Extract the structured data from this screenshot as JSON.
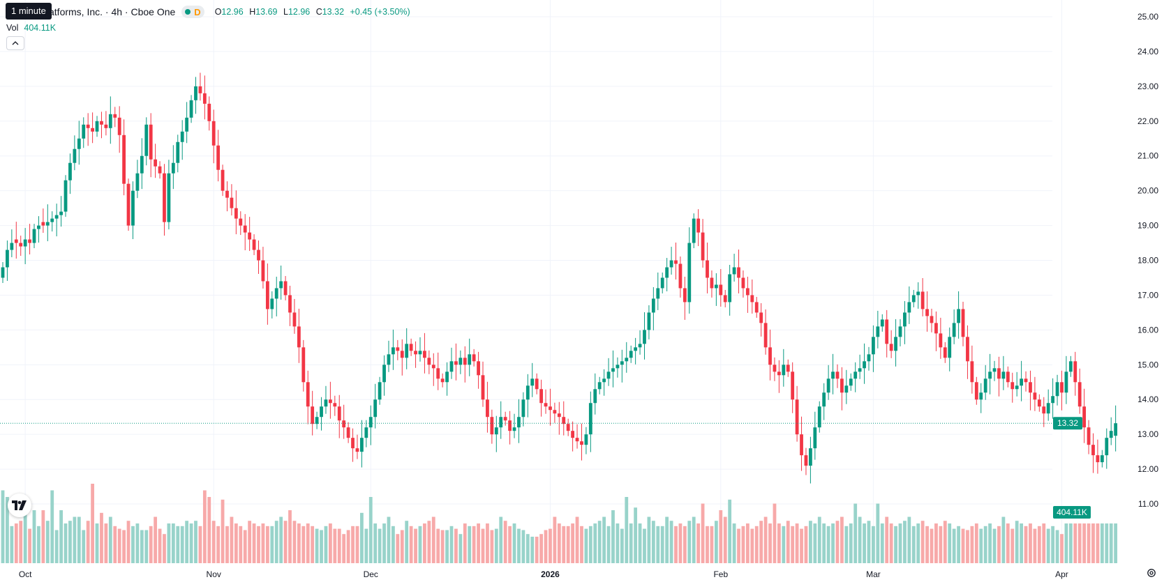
{
  "tooltip": "1 minute",
  "header": {
    "symbol_title": "atforms, Inc. · 4h · Cboe One",
    "d_flag": "D",
    "open_label": "O",
    "open": "12.96",
    "high_label": "H",
    "high": "13.69",
    "low_label": "L",
    "low": "12.96",
    "close_label": "C",
    "close": "13.32",
    "change": "+0.45 (+3.50%)"
  },
  "volume_legend": {
    "label": "Vol",
    "value": "404.11K"
  },
  "colors": {
    "up": "#089981",
    "down": "#f23645",
    "up_volume": "#98d3ca",
    "down_volume": "#f7a9a9",
    "grid": "#f0f3fa",
    "axis_text": "#131722"
  },
  "icons": {
    "collapse": "chevron-up-icon",
    "logo": "tradingview-logo-icon",
    "settings": "gear-icon"
  },
  "chart_data": {
    "type": "candlestick",
    "ylim": [
      10.5,
      25.2
    ],
    "y_ticks": [
      "25.00",
      "24.00",
      "23.00",
      "22.00",
      "21.00",
      "20.00",
      "19.00",
      "18.00",
      "17.00",
      "16.00",
      "15.00",
      "14.00",
      "13.00",
      "12.00",
      "11.00"
    ],
    "x_ticks": [
      {
        "label": "Oct",
        "bar": 5,
        "bold": false
      },
      {
        "label": "Nov",
        "bar": 47,
        "bold": false
      },
      {
        "label": "Dec",
        "bar": 82,
        "bold": false
      },
      {
        "label": "2026",
        "bar": 122,
        "bold": true
      },
      {
        "label": "Feb",
        "bar": 160,
        "bold": false
      },
      {
        "label": "Mar",
        "bar": 194,
        "bold": false
      },
      {
        "label": "Apr",
        "bar": 236,
        "bold": false
      }
    ],
    "last_price": {
      "value": 13.32,
      "label": "13.32"
    },
    "last_volume_label": "404.11K",
    "volume_ratio": [
      0.55,
      0.5,
      0.28,
      0.3,
      0.32,
      0.38,
      0.26,
      0.4,
      0.28,
      0.4,
      0.32,
      0.55,
      0.25,
      0.4,
      0.3,
      0.32,
      0.35,
      0.35,
      0.25,
      0.32,
      0.6,
      0.3,
      0.38,
      0.3,
      0.35,
      0.28,
      0.26,
      0.25,
      0.32,
      0.28,
      0.3,
      0.25,
      0.25,
      0.28,
      0.35,
      0.26,
      0.22,
      0.3,
      0.3,
      0.28,
      0.28,
      0.32,
      0.3,
      0.32,
      0.28,
      0.55,
      0.5,
      0.32,
      0.28,
      0.48,
      0.28,
      0.35,
      0.3,
      0.28,
      0.25,
      0.32,
      0.3,
      0.28,
      0.3,
      0.28,
      0.28,
      0.32,
      0.35,
      0.32,
      0.4,
      0.32,
      0.3,
      0.28,
      0.3,
      0.28,
      0.26,
      0.25,
      0.28,
      0.3,
      0.26,
      0.26,
      0.22,
      0.25,
      0.28,
      0.28,
      0.38,
      0.26,
      0.5,
      0.3,
      0.26,
      0.3,
      0.35,
      0.28,
      0.22,
      0.25,
      0.32,
      0.28,
      0.26,
      0.28,
      0.3,
      0.32,
      0.35,
      0.26,
      0.25,
      0.25,
      0.28,
      0.26,
      0.22,
      0.3,
      0.28,
      0.28,
      0.3,
      0.26,
      0.3,
      0.25,
      0.26,
      0.35,
      0.32,
      0.28,
      0.3,
      0.26,
      0.25,
      0.22,
      0.2,
      0.2,
      0.22,
      0.25,
      0.26,
      0.35,
      0.3,
      0.28,
      0.28,
      0.3,
      0.35,
      0.28,
      0.26,
      0.28,
      0.3,
      0.32,
      0.35,
      0.28,
      0.4,
      0.3,
      0.26,
      0.5,
      0.3,
      0.42,
      0.3,
      0.26,
      0.35,
      0.32,
      0.28,
      0.28,
      0.35,
      0.32,
      0.28,
      0.3,
      0.28,
      0.32,
      0.35,
      0.3,
      0.45,
      0.28,
      0.28,
      0.32,
      0.4,
      0.35,
      0.48,
      0.3,
      0.26,
      0.28,
      0.3,
      0.26,
      0.28,
      0.32,
      0.35,
      0.3,
      0.45,
      0.3,
      0.28,
      0.32,
      0.28,
      0.3,
      0.26,
      0.28,
      0.32,
      0.3,
      0.35,
      0.3,
      0.28,
      0.3,
      0.32,
      0.35,
      0.28,
      0.3,
      0.45,
      0.35,
      0.3,
      0.32,
      0.28,
      0.45,
      0.3,
      0.35,
      0.3,
      0.28,
      0.3,
      0.32,
      0.35,
      0.28,
      0.3,
      0.32,
      0.28,
      0.26,
      0.3,
      0.28,
      0.32,
      0.3,
      0.26,
      0.28,
      0.26,
      0.25,
      0.28,
      0.3,
      0.26,
      0.28,
      0.3,
      0.26,
      0.28,
      0.35,
      0.3,
      0.26,
      0.32,
      0.3,
      0.28,
      0.3,
      0.26,
      0.28,
      0.3,
      0.26,
      0.28,
      0.25,
      0.22
    ],
    "close": [
      17.8,
      18.3,
      18.5,
      18.5,
      18.4,
      18.6,
      18.5,
      18.9,
      19.0,
      19.0,
      19.1,
      19.2,
      19.3,
      19.4,
      20.3,
      20.8,
      21.2,
      21.5,
      21.9,
      21.8,
      21.7,
      22.0,
      21.9,
      21.8,
      22.2,
      22.1,
      21.6,
      20.2,
      19.0,
      20.0,
      20.5,
      21.0,
      21.9,
      20.9,
      20.7,
      20.5,
      19.1,
      20.5,
      20.8,
      21.4,
      21.7,
      22.1,
      22.6,
      23.0,
      22.8,
      22.5,
      22.0,
      21.3,
      20.6,
      20.0,
      19.8,
      19.5,
      19.2,
      19.0,
      18.8,
      18.6,
      18.3,
      18.0,
      17.4,
      16.6,
      16.9,
      17.2,
      17.4,
      17.0,
      16.5,
      16.1,
      15.5,
      14.5,
      13.8,
      13.3,
      13.5,
      13.8,
      14.0,
      13.9,
      13.8,
      13.4,
      13.2,
      12.9,
      12.6,
      12.5,
      12.9,
      13.2,
      13.5,
      14.0,
      14.5,
      15.0,
      15.3,
      15.5,
      15.4,
      15.2,
      15.6,
      15.4,
      15.3,
      15.4,
      15.2,
      15.0,
      14.9,
      14.6,
      14.5,
      14.8,
      15.1,
      15.0,
      15.2,
      15.0,
      15.3,
      15.1,
      14.7,
      14.0,
      13.5,
      13.0,
      13.2,
      13.5,
      13.4,
      13.1,
      13.2,
      13.5,
      14.0,
      14.4,
      14.6,
      14.3,
      13.9,
      13.8,
      13.7,
      13.6,
      13.5,
      13.3,
      13.1,
      12.9,
      12.8,
      12.7,
      13.0,
      13.9,
      14.3,
      14.5,
      14.6,
      14.8,
      14.9,
      15.0,
      15.1,
      15.2,
      15.4,
      15.5,
      15.6,
      16.0,
      16.5,
      16.9,
      17.2,
      17.5,
      17.8,
      18.0,
      17.9,
      17.2,
      16.8,
      18.5,
      19.2,
      18.8,
      18.0,
      17.5,
      17.2,
      17.3,
      17.0,
      16.8,
      17.6,
      17.8,
      17.5,
      17.2,
      17.0,
      16.8,
      16.5,
      16.2,
      15.5,
      15.0,
      14.8,
      14.7,
      15.0,
      14.8,
      14.0,
      13.0,
      12.4,
      12.1,
      12.6,
      13.2,
      13.8,
      14.2,
      14.6,
      14.8,
      14.6,
      14.2,
      14.4,
      14.6,
      14.8,
      14.9,
      15.1,
      15.3,
      15.8,
      16.1,
      16.3,
      15.6,
      15.4,
      15.8,
      16.1,
      16.5,
      16.8,
      17.0,
      17.1,
      16.6,
      16.4,
      16.2,
      15.9,
      15.5,
      15.2,
      15.8,
      16.2,
      16.6,
      15.8,
      15.1,
      14.5,
      14.0,
      14.2,
      14.6,
      14.8,
      14.9,
      14.6,
      14.8,
      14.5,
      14.3,
      14.4,
      14.6,
      14.5,
      14.2,
      14.0,
      13.8,
      13.6,
      13.9,
      14.1,
      14.5,
      14.2,
      14.8,
      15.1,
      14.5,
      13.8,
      13.2,
      12.7,
      12.4,
      12.2,
      12.4,
      12.9,
      13.1,
      13.32
    ],
    "open": [
      17.5,
      17.8,
      18.3,
      18.6,
      18.5,
      18.4,
      18.6,
      18.5,
      18.9,
      19.1,
      19.0,
      19.1,
      19.2,
      19.3,
      19.4,
      20.3,
      20.8,
      21.2,
      21.5,
      21.9,
      21.8,
      21.7,
      22.0,
      21.9,
      21.8,
      22.2,
      22.1,
      21.6,
      20.2,
      19.0,
      20.0,
      20.5,
      21.0,
      21.9,
      20.9,
      20.7,
      20.5,
      19.1,
      20.5,
      20.8,
      21.4,
      21.7,
      22.1,
      22.6,
      23.0,
      22.8,
      22.5,
      22.0,
      21.3,
      20.6,
      20.0,
      19.8,
      19.5,
      19.2,
      19.0,
      18.8,
      18.6,
      18.3,
      18.0,
      17.4,
      16.6,
      16.9,
      17.2,
      17.4,
      17.0,
      16.5,
      16.1,
      15.5,
      14.5,
      13.8,
      13.3,
      13.5,
      13.8,
      14.0,
      13.9,
      13.8,
      13.4,
      13.2,
      12.9,
      12.6,
      12.5,
      12.9,
      13.2,
      13.5,
      14.0,
      14.5,
      15.0,
      15.3,
      15.5,
      15.4,
      15.2,
      15.6,
      15.4,
      15.3,
      15.4,
      15.2,
      15.0,
      14.9,
      14.6,
      14.5,
      14.8,
      15.1,
      15.0,
      15.2,
      15.0,
      15.3,
      15.1,
      14.7,
      14.0,
      13.5,
      13.0,
      13.2,
      13.5,
      13.4,
      13.1,
      13.2,
      13.5,
      14.0,
      14.4,
      14.6,
      14.3,
      13.9,
      13.8,
      13.7,
      13.6,
      13.5,
      13.3,
      13.1,
      12.9,
      12.8,
      12.7,
      13.0,
      13.9,
      14.3,
      14.5,
      14.6,
      14.8,
      14.9,
      15.0,
      15.1,
      15.2,
      15.4,
      15.5,
      15.6,
      16.0,
      16.5,
      16.9,
      17.2,
      17.5,
      17.8,
      18.0,
      17.9,
      17.2,
      16.8,
      18.5,
      19.2,
      18.8,
      18.0,
      17.5,
      17.2,
      17.3,
      17.0,
      16.8,
      17.6,
      17.8,
      17.5,
      17.2,
      17.0,
      16.8,
      16.5,
      16.2,
      15.5,
      15.0,
      14.8,
      14.7,
      15.0,
      14.8,
      14.0,
      13.0,
      12.4,
      12.1,
      12.6,
      13.2,
      13.8,
      14.2,
      14.6,
      14.8,
      14.6,
      14.2,
      14.4,
      14.6,
      14.8,
      14.9,
      15.1,
      15.3,
      15.8,
      16.1,
      16.3,
      15.6,
      15.4,
      15.8,
      16.1,
      16.5,
      16.8,
      17.0,
      17.1,
      16.6,
      16.4,
      16.2,
      15.9,
      15.5,
      15.2,
      15.8,
      16.2,
      16.6,
      15.8,
      15.1,
      14.5,
      14.0,
      14.2,
      14.6,
      14.8,
      14.9,
      14.6,
      14.8,
      14.5,
      14.3,
      14.4,
      14.6,
      14.5,
      14.2,
      14.0,
      13.8,
      13.6,
      13.9,
      14.1,
      14.5,
      14.2,
      14.8,
      15.1,
      14.5,
      13.8,
      13.2,
      12.7,
      12.4,
      12.2,
      12.4,
      12.9,
      12.96
    ]
  }
}
